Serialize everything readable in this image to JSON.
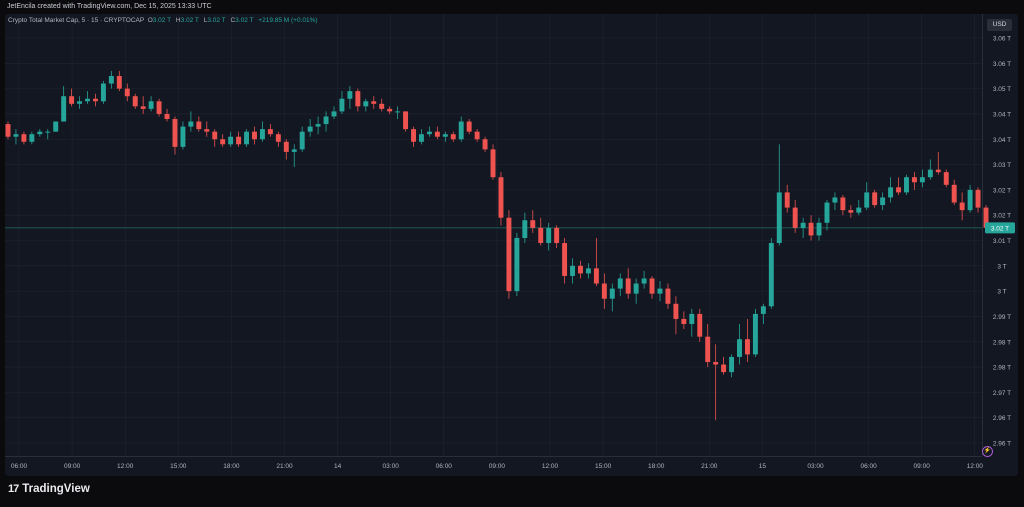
{
  "header": {
    "text": "JetEncila created with TradingView.com, Dec 15, 2025 13:33 UTC"
  },
  "legend": {
    "symbol": "Crypto Total Market Cap, 5 · 15 · CRYPTOCAP",
    "o_label": "O",
    "o_value": "3.02 T",
    "h_label": "H",
    "h_value": "3.02 T",
    "l_label": "L",
    "l_value": "3.02 T",
    "c_label": "C",
    "c_value": "3.02 T",
    "change": "+219.85 M (+0.01%)"
  },
  "currency": "USD",
  "brand": {
    "logo": "17",
    "name": "TradingView"
  },
  "colors": {
    "background": "#131722",
    "up": "#26a69a",
    "down": "#ef5350",
    "grid": "#1f2431",
    "price_line": "#1f6f66"
  },
  "chart_data": {
    "type": "candlestick",
    "title": "Crypto Total Market Cap",
    "y_tick_labels": [
      "3.06 T",
      "3.06 T",
      "3.05 T",
      "3.04 T",
      "3.04 T",
      "3.03 T",
      "3.02 T",
      "3.02 T",
      "3.01 T",
      "3 T",
      "3 T",
      "2.99 T",
      "2.98 T",
      "2.98 T",
      "2.97 T",
      "2.96 T",
      "2.96 T"
    ],
    "y_tick_values": [
      3.061,
      3.056,
      3.051,
      3.046,
      3.041,
      3.036,
      3.031,
      3.026,
      3.021,
      3.016,
      3.011,
      3.006,
      3.001,
      2.996,
      2.991,
      2.986,
      2.981
    ],
    "x_tick_labels": [
      "06:00",
      "09:00",
      "12:00",
      "15:00",
      "18:00",
      "21:00",
      "14",
      "03:00",
      "06:00",
      "09:00",
      "12:00",
      "15:00",
      "18:00",
      "21:00",
      "15",
      "03:00",
      "06:00",
      "09:00",
      "12:00"
    ],
    "ylim": [
      2.9795,
      3.0625
    ],
    "current_price": 3.0235,
    "current_price_label": "3.02 T",
    "ohlc": [
      [
        3.044,
        3.0445,
        3.041,
        3.0415
      ],
      [
        3.0415,
        3.043,
        3.04,
        3.042
      ],
      [
        3.042,
        3.0425,
        3.04,
        3.0405
      ],
      [
        3.0405,
        3.0425,
        3.04,
        3.042
      ],
      [
        3.042,
        3.043,
        3.0415,
        3.0425
      ],
      [
        3.0425,
        3.043,
        3.041,
        3.0425
      ],
      [
        3.0425,
        3.0445,
        3.0425,
        3.0445
      ],
      [
        3.0445,
        3.0515,
        3.0445,
        3.0495
      ],
      [
        3.0495,
        3.051,
        3.0475,
        3.048
      ],
      [
        3.048,
        3.0495,
        3.047,
        3.0485
      ],
      [
        3.0485,
        3.0505,
        3.048,
        3.049
      ],
      [
        3.049,
        3.05,
        3.0475,
        3.0485
      ],
      [
        3.0485,
        3.0525,
        3.048,
        3.052
      ],
      [
        3.052,
        3.0545,
        3.051,
        3.0535
      ],
      [
        3.0535,
        3.0545,
        3.0505,
        3.051
      ],
      [
        3.051,
        3.052,
        3.0485,
        3.0495
      ],
      [
        3.0495,
        3.05,
        3.047,
        3.0475
      ],
      [
        3.0475,
        3.0495,
        3.046,
        3.047
      ],
      [
        3.047,
        3.0495,
        3.0465,
        3.0485
      ],
      [
        3.0485,
        3.049,
        3.0455,
        3.046
      ],
      [
        3.046,
        3.047,
        3.0445,
        3.045
      ],
      [
        3.045,
        3.0455,
        3.038,
        3.0395
      ],
      [
        3.0395,
        3.0445,
        3.039,
        3.0435
      ],
      [
        3.0435,
        3.0465,
        3.0425,
        3.0445
      ],
      [
        3.0445,
        3.0455,
        3.0425,
        3.043
      ],
      [
        3.043,
        3.0445,
        3.0415,
        3.0425
      ],
      [
        3.0425,
        3.043,
        3.0395,
        3.041
      ],
      [
        3.041,
        3.042,
        3.0395,
        3.04
      ],
      [
        3.04,
        3.0425,
        3.0395,
        3.0415
      ],
      [
        3.0415,
        3.0425,
        3.0395,
        3.04
      ],
      [
        3.04,
        3.043,
        3.0395,
        3.0425
      ],
      [
        3.0425,
        3.0435,
        3.04,
        3.041
      ],
      [
        3.041,
        3.0445,
        3.0405,
        3.043
      ],
      [
        3.043,
        3.044,
        3.0415,
        3.042
      ],
      [
        3.042,
        3.0425,
        3.0395,
        3.0405
      ],
      [
        3.0405,
        3.041,
        3.037,
        3.0385
      ],
      [
        3.0385,
        3.04,
        3.0355,
        3.039
      ],
      [
        3.039,
        3.0435,
        3.0385,
        3.0425
      ],
      [
        3.0425,
        3.045,
        3.0415,
        3.0435
      ],
      [
        3.0435,
        3.0455,
        3.042,
        3.044
      ],
      [
        3.044,
        3.0465,
        3.0425,
        3.0455
      ],
      [
        3.0455,
        3.0475,
        3.045,
        3.0465
      ],
      [
        3.0465,
        3.0505,
        3.046,
        3.049
      ],
      [
        3.049,
        3.0515,
        3.047,
        3.0505
      ],
      [
        3.0505,
        3.051,
        3.0465,
        3.0475
      ],
      [
        3.0475,
        3.049,
        3.0465,
        3.0485
      ],
      [
        3.0485,
        3.0495,
        3.047,
        3.048
      ],
      [
        3.048,
        3.049,
        3.0465,
        3.047
      ],
      [
        3.047,
        3.0475,
        3.046,
        3.0465
      ],
      [
        3.0465,
        3.0475,
        3.045,
        3.0465
      ],
      [
        3.0465,
        3.0465,
        3.0425,
        3.043
      ],
      [
        3.043,
        3.0435,
        3.0395,
        3.0405
      ],
      [
        3.0405,
        3.043,
        3.04,
        3.042
      ],
      [
        3.042,
        3.0435,
        3.0415,
        3.0425
      ],
      [
        3.0425,
        3.0435,
        3.041,
        3.0415
      ],
      [
        3.0415,
        3.0425,
        3.0405,
        3.042
      ],
      [
        3.042,
        3.0425,
        3.0405,
        3.041
      ],
      [
        3.041,
        3.0455,
        3.0405,
        3.0445
      ],
      [
        3.0445,
        3.045,
        3.042,
        3.0425
      ],
      [
        3.0425,
        3.043,
        3.0405,
        3.041
      ],
      [
        3.041,
        3.0415,
        3.0385,
        3.039
      ],
      [
        3.039,
        3.04,
        3.033,
        3.0335
      ],
      [
        3.0335,
        3.0345,
        3.024,
        3.0255
      ],
      [
        3.0255,
        3.027,
        3.0095,
        3.011
      ],
      [
        3.011,
        3.0225,
        3.01,
        3.0215
      ],
      [
        3.0215,
        3.0265,
        3.0205,
        3.025
      ],
      [
        3.025,
        3.027,
        3.0225,
        3.0235
      ],
      [
        3.0235,
        3.0255,
        3.02,
        3.0205
      ],
      [
        3.0205,
        3.0245,
        3.019,
        3.0235
      ],
      [
        3.0235,
        3.024,
        3.0195,
        3.0205
      ],
      [
        3.0205,
        3.0215,
        3.0125,
        3.014
      ],
      [
        3.014,
        3.0175,
        3.0125,
        3.016
      ],
      [
        3.016,
        3.017,
        3.0135,
        3.0145
      ],
      [
        3.0145,
        3.0165,
        3.0135,
        3.0155
      ],
      [
        3.0155,
        3.0215,
        3.012,
        3.0125
      ],
      [
        3.0125,
        3.0145,
        3.0075,
        3.0095
      ],
      [
        3.0095,
        3.0125,
        3.007,
        3.0115
      ],
      [
        3.0115,
        3.0145,
        3.01,
        3.0135
      ],
      [
        3.0135,
        3.0155,
        3.0095,
        3.0105
      ],
      [
        3.0105,
        3.0135,
        3.0085,
        3.0125
      ],
      [
        3.0125,
        3.015,
        3.0115,
        3.0135
      ],
      [
        3.0135,
        3.014,
        3.0095,
        3.0105
      ],
      [
        3.0105,
        3.013,
        3.009,
        3.0115
      ],
      [
        3.0115,
        3.0125,
        3.0075,
        3.0085
      ],
      [
        3.0085,
        3.01,
        3.0025,
        3.0055
      ],
      [
        3.0055,
        3.007,
        3.0035,
        3.0045
      ],
      [
        3.0045,
        3.0075,
        3.002,
        3.0065
      ],
      [
        3.0065,
        3.0075,
        3.001,
        3.002
      ],
      [
        3.002,
        3.0045,
        2.996,
        2.997
      ],
      [
        2.997,
        3.0005,
        2.9855,
        2.9965
      ],
      [
        2.9965,
        2.998,
        2.9945,
        2.995
      ],
      [
        2.995,
        2.9985,
        2.994,
        2.998
      ],
      [
        2.998,
        3.0045,
        2.9965,
        3.0015
      ],
      [
        3.0015,
        3.0055,
        2.997,
        2.9985
      ],
      [
        2.9985,
        3.0075,
        2.998,
        3.0065
      ],
      [
        3.0065,
        3.0085,
        3.0045,
        3.008
      ],
      [
        3.008,
        3.0215,
        3.0075,
        3.0205
      ],
      [
        3.0205,
        3.04,
        3.02,
        3.0305
      ],
      [
        3.0305,
        3.032,
        3.0265,
        3.0275
      ],
      [
        3.0275,
        3.029,
        3.0225,
        3.0235
      ],
      [
        3.0235,
        3.0255,
        3.0215,
        3.0245
      ],
      [
        3.0245,
        3.026,
        3.021,
        3.022
      ],
      [
        3.022,
        3.0255,
        3.021,
        3.0245
      ],
      [
        3.0245,
        3.029,
        3.023,
        3.0285
      ],
      [
        3.0285,
        3.0305,
        3.027,
        3.0295
      ],
      [
        3.0295,
        3.03,
        3.026,
        3.027
      ],
      [
        3.027,
        3.028,
        3.0255,
        3.0265
      ],
      [
        3.0265,
        3.029,
        3.026,
        3.0275
      ],
      [
        3.0275,
        3.0325,
        3.027,
        3.0305
      ],
      [
        3.0305,
        3.031,
        3.0275,
        3.028
      ],
      [
        3.028,
        3.0305,
        3.027,
        3.0295
      ],
      [
        3.0295,
        3.0335,
        3.0285,
        3.0315
      ],
      [
        3.0315,
        3.0335,
        3.03,
        3.0305
      ],
      [
        3.0305,
        3.034,
        3.03,
        3.0335
      ],
      [
        3.0335,
        3.0345,
        3.031,
        3.0325
      ],
      [
        3.0325,
        3.035,
        3.0315,
        3.0335
      ],
      [
        3.0335,
        3.037,
        3.033,
        3.035
      ],
      [
        3.035,
        3.0385,
        3.034,
        3.0345
      ],
      [
        3.0345,
        3.035,
        3.0315,
        3.032
      ],
      [
        3.032,
        3.033,
        3.028,
        3.0285
      ],
      [
        3.0285,
        3.0305,
        3.025,
        3.027
      ],
      [
        3.027,
        3.032,
        3.0265,
        3.031
      ],
      [
        3.031,
        3.0315,
        3.0265,
        3.0275
      ],
      [
        3.0275,
        3.028,
        3.0225,
        3.0235
      ]
    ]
  }
}
